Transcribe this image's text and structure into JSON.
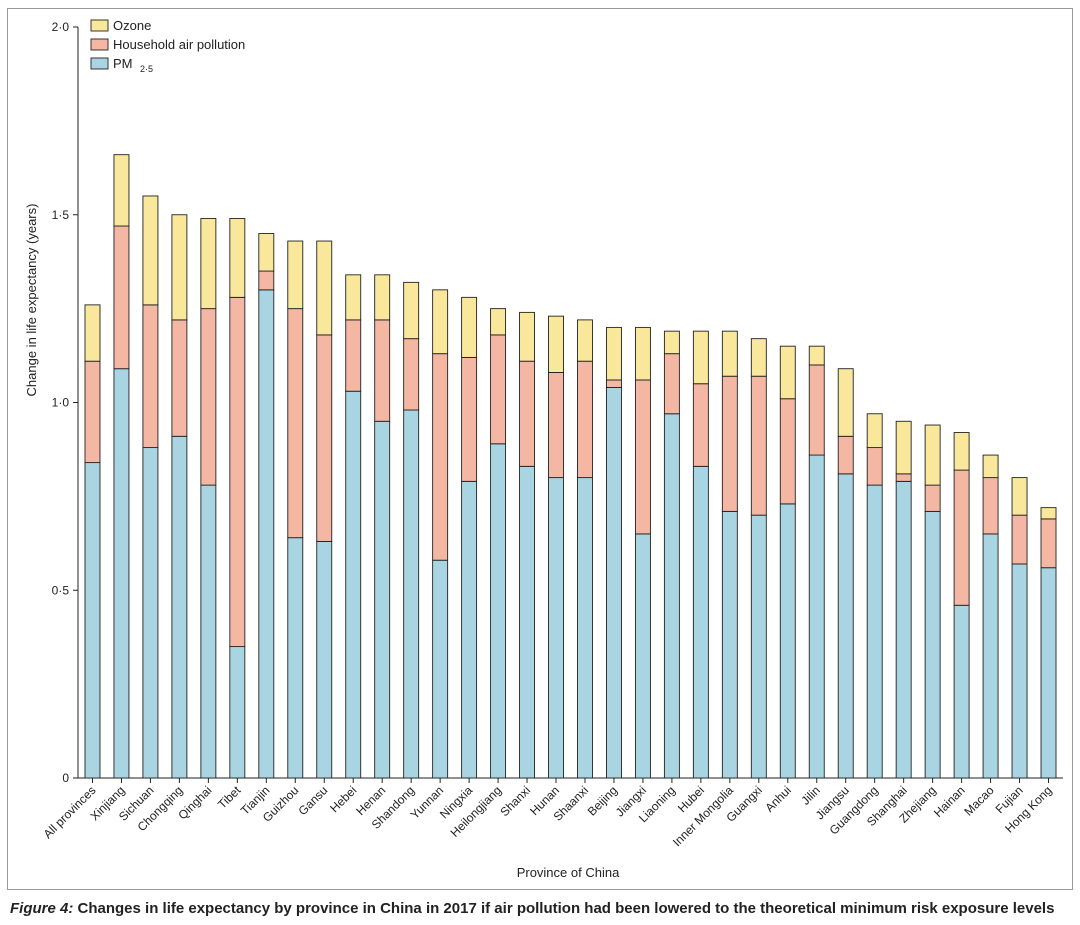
{
  "chart_data": {
    "type": "bar",
    "stacked": true,
    "title": "",
    "xlabel": "Province of China",
    "ylabel": "Change in life expectancy (years)",
    "ylim": [
      0,
      2.0
    ],
    "yticks": [
      0,
      0.5,
      1.0,
      1.5,
      2.0
    ],
    "ytick_labels": [
      "0",
      "0·5",
      "1·0",
      "1·5",
      "2·0"
    ],
    "legend_position": "top-left",
    "categories": [
      "All provinces",
      "Xinjiang",
      "Sichuan",
      "Chongqing",
      "Qinghai",
      "Tibet",
      "Tianjin",
      "Guizhou",
      "Gansu",
      "Hebei",
      "Henan",
      "Shandong",
      "Yunnan",
      "Ningxia",
      "Heilongjiang",
      "Shanxi",
      "Hunan",
      "Shaanxi",
      "Beijing",
      "Jiangxi",
      "Liaoning",
      "Hubei",
      "Inner Mongolia",
      "Guangxi",
      "Anhui",
      "Jilin",
      "Jiangsu",
      "Guangdong",
      "Shanghai",
      "Zhejiang",
      "Hainan",
      "Macao",
      "Fujian",
      "Hong Kong"
    ],
    "series": [
      {
        "name": "PM",
        "subscript": "2·5",
        "color": "#a9d5e3",
        "values": [
          0.84,
          1.09,
          0.88,
          0.91,
          0.78,
          0.35,
          1.3,
          0.64,
          0.63,
          1.03,
          0.95,
          0.98,
          0.58,
          0.79,
          0.89,
          0.83,
          0.8,
          0.8,
          1.04,
          0.65,
          0.97,
          0.83,
          0.71,
          0.7,
          0.73,
          0.86,
          0.81,
          0.78,
          0.79,
          0.71,
          0.46,
          0.65,
          0.57,
          0.56
        ]
      },
      {
        "name": "Household air pollution",
        "color": "#f3b7a3",
        "values": [
          0.27,
          0.38,
          0.38,
          0.31,
          0.47,
          0.93,
          0.05,
          0.61,
          0.55,
          0.19,
          0.27,
          0.19,
          0.55,
          0.33,
          0.29,
          0.28,
          0.28,
          0.31,
          0.02,
          0.41,
          0.16,
          0.22,
          0.36,
          0.37,
          0.28,
          0.24,
          0.1,
          0.1,
          0.02,
          0.07,
          0.36,
          0.15,
          0.13,
          0.13
        ]
      },
      {
        "name": "Ozone",
        "color": "#f9e79b",
        "values": [
          0.15,
          0.19,
          0.29,
          0.28,
          0.24,
          0.21,
          0.1,
          0.18,
          0.25,
          0.12,
          0.12,
          0.15,
          0.17,
          0.16,
          0.07,
          0.13,
          0.15,
          0.11,
          0.14,
          0.14,
          0.06,
          0.14,
          0.12,
          0.1,
          0.14,
          0.05,
          0.18,
          0.09,
          0.14,
          0.16,
          0.1,
          0.06,
          0.1,
          0.03
        ]
      }
    ]
  },
  "caption": {
    "figure_label": "Figure 4:",
    "text": " Changes in life expectancy by province in China in 2017 if air pollution had been lowered to the theoretical minimum risk exposure levels"
  }
}
